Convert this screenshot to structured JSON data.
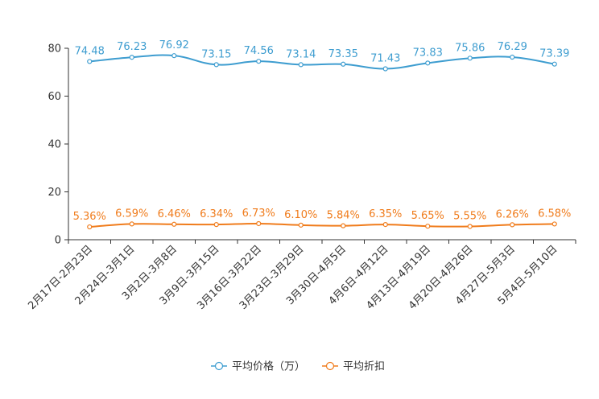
{
  "chart_data": {
    "type": "line",
    "title": "",
    "xlabel": "",
    "ylabel": "",
    "ylim": [
      0,
      80
    ],
    "yticks": [
      0,
      20,
      40,
      60,
      80
    ],
    "grid": false,
    "legend_position": "bottom-center",
    "categories": [
      "2月17日-2月23日",
      "2月24日-3月1日",
      "3月2日-3月8日",
      "3月9日-3月15日",
      "3月16日-3月22日",
      "3月23日-3月29日",
      "3月30日-4月5日",
      "4月6日-4月12日",
      "4月13日-4月19日",
      "4月20日-4月26日",
      "4月27日-5月3日",
      "5月4日-5月10日"
    ],
    "series": [
      {
        "name": "平均价格（万）",
        "color": "#3e9dd0",
        "values": [
          74.48,
          76.23,
          76.92,
          73.15,
          74.56,
          73.14,
          73.35,
          71.43,
          73.83,
          75.86,
          76.29,
          73.39
        ],
        "labels": [
          "74.48",
          "76.23",
          "76.92",
          "73.15",
          "74.56",
          "73.14",
          "73.35",
          "71.43",
          "73.83",
          "75.86",
          "76.29",
          "73.39"
        ]
      },
      {
        "name": "平均折扣",
        "color": "#f07c1c",
        "values": [
          5.36,
          6.59,
          6.46,
          6.34,
          6.73,
          6.1,
          5.84,
          6.35,
          5.65,
          5.55,
          6.26,
          6.58
        ],
        "labels": [
          "5.36%",
          "6.59%",
          "6.46%",
          "6.34%",
          "6.73%",
          "6.10%",
          "5.84%",
          "6.35%",
          "5.65%",
          "5.55%",
          "6.26%",
          "6.58%"
        ]
      }
    ]
  }
}
